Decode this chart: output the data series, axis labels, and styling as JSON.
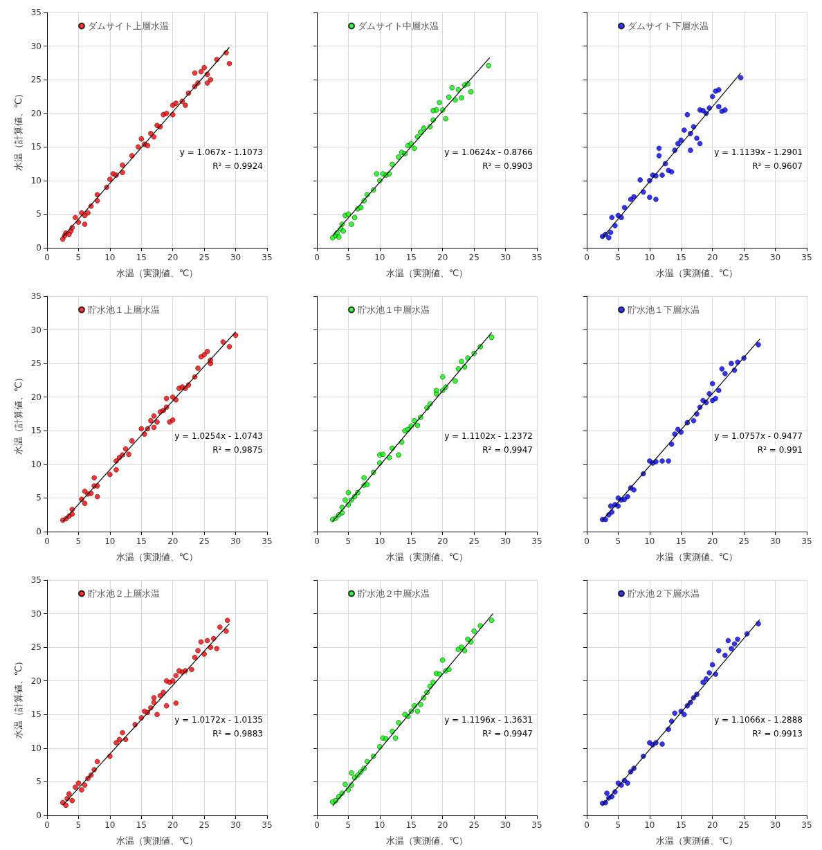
{
  "chart_data": [
    {
      "type": "scatter",
      "ylabel": "水温（計算値、℃）",
      "xlabel": "水温（実測値、℃）",
      "xlim": [
        0,
        35
      ],
      "ylim": [
        0,
        35
      ],
      "xticks": [
        0,
        5,
        10,
        15,
        20,
        25,
        30,
        35
      ],
      "yticks": [
        0,
        5,
        10,
        15,
        20,
        25,
        30,
        35
      ],
      "grid": true,
      "legend": "top left",
      "marker": "circle",
      "annotations": [
        "y = 1.067x - 1.1073",
        "R² = 0.9924"
      ],
      "series": [
        {
          "name": "ダムサイト上層水温",
          "color": "#ff0000",
          "x": [
            2.5,
            2.8,
            3,
            3.5,
            3.8,
            4,
            4.5,
            5,
            5.5,
            6,
            6,
            6.5,
            7,
            8,
            8,
            9.5,
            10,
            10.5,
            11,
            12,
            12,
            13.5,
            14.5,
            15,
            15.5,
            16,
            16.5,
            17,
            17.5,
            18,
            18.5,
            19,
            20,
            20,
            20.5,
            21.5,
            22,
            22.5,
            23.5,
            23.5,
            24,
            24.5,
            25,
            25.5,
            25.5,
            26,
            27,
            28.5,
            29
          ],
          "values": [
            1.3,
            1.8,
            2.2,
            2,
            2.5,
            3,
            4.5,
            3.8,
            5.2,
            3.5,
            4.8,
            5.2,
            6.2,
            7,
            7.9,
            9,
            10.2,
            11,
            10.8,
            12.3,
            11.2,
            13.7,
            15,
            16.2,
            15.4,
            15.2,
            17,
            16.5,
            18.2,
            18,
            19.8,
            20,
            19.8,
            21.2,
            21.5,
            21.8,
            21.2,
            23,
            26,
            24,
            24.5,
            26.2,
            26.8,
            24.5,
            25.8,
            25,
            28,
            29,
            27.4
          ]
        },
        {
          "type": "line",
          "marker": "none",
          "color": "#000000",
          "x": [
            2.5,
            29
          ],
          "values": [
            1.6,
            29.8
          ]
        }
      ]
    },
    {
      "type": "scatter",
      "xlabel": "水温（実測値、℃）",
      "xlim": [
        0,
        35
      ],
      "ylim": [
        0,
        35
      ],
      "xticks": [
        0,
        5,
        10,
        15,
        20,
        25,
        30,
        35
      ],
      "yticks": [
        0,
        5,
        10,
        15,
        20,
        25,
        30,
        35
      ],
      "grid": true,
      "legend": "top left",
      "marker": "circle",
      "tick_labels": "x",
      "annotations": [
        "y = 1.0624x - 0.8766",
        "R² = 0.9903"
      ],
      "series": [
        {
          "name": "ダムサイト中層水温",
          "color": "#00ff00",
          "x": [
            2.5,
            3,
            3.2,
            3.5,
            3.8,
            4,
            4.2,
            4.5,
            5,
            5.5,
            6,
            6.5,
            7,
            7.5,
            8,
            9,
            9.5,
            10,
            10.5,
            11,
            11.5,
            12,
            13,
            13.5,
            14,
            14.5,
            15,
            15.5,
            16,
            16.5,
            17,
            18,
            18.5,
            18.5,
            19,
            19.5,
            20,
            20.5,
            21,
            21.5,
            22,
            22.5,
            23,
            23.5,
            24,
            24.5,
            27.3
          ],
          "values": [
            1.5,
            1.8,
            2.2,
            1.6,
            2.8,
            3.5,
            2.5,
            4.8,
            5,
            3.5,
            4.5,
            5.8,
            6,
            7,
            7.9,
            8.6,
            11,
            10,
            11,
            10.8,
            11,
            12.4,
            13.5,
            14.2,
            14,
            15.2,
            15.5,
            14.8,
            16.5,
            17.2,
            17.8,
            18,
            19,
            20.4,
            20.5,
            21.6,
            20.5,
            19.2,
            22.4,
            23.8,
            22,
            23.5,
            22.3,
            24.2,
            24.4,
            23.2,
            27.1
          ]
        },
        {
          "type": "line",
          "marker": "none",
          "color": "#000000",
          "x": [
            2.5,
            27.5
          ],
          "values": [
            1.8,
            28.3
          ]
        }
      ]
    },
    {
      "type": "scatter",
      "xlabel": "水温（実測値、℃）",
      "xlim": [
        0,
        35
      ],
      "ylim": [
        0,
        35
      ],
      "xticks": [
        0,
        5,
        10,
        15,
        20,
        25,
        30,
        35
      ],
      "yticks": [
        0,
        5,
        10,
        15,
        20,
        25,
        30,
        35
      ],
      "grid": true,
      "legend": "top left",
      "marker": "circle",
      "tick_labels": "x",
      "annotations": [
        "y = 1.1139x - 1.2901",
        "R² = 0.9607"
      ],
      "series": [
        {
          "name": "ダムサイト下層水温",
          "color": "#0000ff",
          "x": [
            2.5,
            3,
            3.5,
            3.8,
            4,
            4.5,
            5,
            5.5,
            6,
            7,
            7.5,
            8.5,
            9,
            10,
            10,
            10.5,
            11,
            11,
            11.5,
            11.5,
            12,
            12.5,
            13,
            13.5,
            14,
            14.5,
            15,
            15.5,
            16,
            16.5,
            16.5,
            17,
            17.5,
            18,
            18,
            18.5,
            19,
            19.5,
            20,
            20.5,
            21,
            21,
            21.5,
            22,
            24.5
          ],
          "values": [
            1.7,
            2,
            1.5,
            2.3,
            4.5,
            3.3,
            4.8,
            4.5,
            6,
            7.2,
            7.6,
            10.1,
            8.3,
            7.5,
            10,
            10.8,
            7.2,
            10.7,
            13.7,
            14.8,
            10.8,
            12.5,
            11.5,
            11.3,
            14.5,
            15.5,
            16,
            17.5,
            19.8,
            14.5,
            17,
            18,
            16.3,
            20.5,
            15.5,
            20.4,
            20,
            20.8,
            22.5,
            23.3,
            23.5,
            21,
            20.3,
            20.5,
            25.3
          ]
        },
        {
          "type": "line",
          "marker": "none",
          "color": "#000000",
          "x": [
            2.5,
            24.5
          ],
          "values": [
            1.5,
            26
          ]
        }
      ]
    },
    {
      "type": "scatter",
      "ylabel": "水温（計算値、℃）",
      "xlabel": "水温（実測値、℃）",
      "xlim": [
        0,
        35
      ],
      "ylim": [
        0,
        35
      ],
      "xticks": [
        0,
        5,
        10,
        15,
        20,
        25,
        30,
        35
      ],
      "yticks": [
        0,
        5,
        10,
        15,
        20,
        25,
        30,
        35
      ],
      "grid": true,
      "legend": "top left",
      "marker": "circle",
      "annotations": [
        "y = 1.0254x - 1.0743",
        "R² = 0.9875"
      ],
      "series": [
        {
          "name": "貯水池１上層水温",
          "color": "#ff0000",
          "x": [
            2.5,
            3,
            3.5,
            4,
            4,
            5.5,
            6,
            6,
            6.5,
            7,
            7.5,
            7.5,
            8,
            8,
            10,
            11,
            11,
            11.5,
            12,
            12.5,
            13,
            13.5,
            15,
            15.5,
            16,
            16.5,
            17,
            17,
            17.5,
            18,
            18.5,
            19,
            19,
            19.5,
            20,
            20,
            20.5,
            21,
            21.5,
            22,
            22.5,
            23.5,
            24,
            24.5,
            25,
            25.5,
            26,
            26,
            28,
            29,
            30
          ],
          "values": [
            1.7,
            1.9,
            2.3,
            3.3,
            2.6,
            4.8,
            4.2,
            6,
            5.6,
            5.7,
            6.8,
            8,
            5.2,
            6.8,
            8.5,
            9.2,
            10.5,
            11,
            11.4,
            12.3,
            11.5,
            13.5,
            15.3,
            14.5,
            15.3,
            16.5,
            17.2,
            15.5,
            16.3,
            17.8,
            18,
            19.8,
            18.5,
            16.3,
            20,
            16.6,
            19.6,
            21.3,
            21.5,
            21.3,
            21.8,
            23,
            24.3,
            26,
            26.3,
            26.8,
            25,
            25.5,
            28.2,
            27.5,
            29.2
          ]
        },
        {
          "type": "line",
          "marker": "none",
          "color": "#000000",
          "x": [
            2.5,
            30
          ],
          "values": [
            1.5,
            29.7
          ]
        }
      ]
    },
    {
      "type": "scatter",
      "xlabel": "水温（実測値、℃）",
      "xlim": [
        0,
        35
      ],
      "ylim": [
        0,
        35
      ],
      "xticks": [
        0,
        5,
        10,
        15,
        20,
        25,
        30,
        35
      ],
      "yticks": [
        0,
        5,
        10,
        15,
        20,
        25,
        30,
        35
      ],
      "grid": true,
      "legend": "top left",
      "marker": "circle",
      "tick_labels": "x",
      "annotations": [
        "y = 1.1102x - 1.2372",
        "R² = 0.9947"
      ],
      "series": [
        {
          "name": "貯水池１中層水温",
          "color": "#00ff00",
          "x": [
            2.5,
            3,
            3.5,
            4,
            4,
            4.5,
            5,
            5,
            5.5,
            6,
            6.5,
            7.5,
            7.5,
            8,
            9,
            10,
            10,
            10.5,
            11.5,
            12,
            13,
            13.5,
            14,
            14.5,
            15,
            15.5,
            16,
            16.5,
            17.5,
            18,
            19,
            19,
            20,
            20,
            20.5,
            22,
            22.5,
            23,
            23.5,
            24,
            25,
            26,
            27.8
          ],
          "values": [
            1.8,
            2,
            2.5,
            3.6,
            2.8,
            4.7,
            5.8,
            4,
            4.7,
            5.2,
            5.8,
            6.9,
            8,
            7,
            8.8,
            10.2,
            11.4,
            11.5,
            11,
            12.4,
            11.4,
            13.3,
            15,
            15.2,
            15.7,
            16.5,
            15.8,
            17,
            18.4,
            19,
            20.5,
            21,
            21,
            23,
            21.5,
            22.4,
            24.2,
            25.3,
            24.5,
            25.8,
            26.5,
            27.5,
            28.9
          ]
        },
        {
          "type": "line",
          "marker": "none",
          "color": "#000000",
          "x": [
            2.5,
            27.8
          ],
          "values": [
            1.5,
            29.6
          ]
        }
      ]
    },
    {
      "type": "scatter",
      "xlabel": "水温（実測値、℃）",
      "xlim": [
        0,
        35
      ],
      "ylim": [
        0,
        35
      ],
      "xticks": [
        0,
        5,
        10,
        15,
        20,
        25,
        30,
        35
      ],
      "yticks": [
        0,
        5,
        10,
        15,
        20,
        25,
        30,
        35
      ],
      "grid": true,
      "legend": "top left",
      "marker": "circle",
      "tick_labels": "x",
      "annotations": [
        "y = 1.0757x - 0.9477",
        "R² = 0.991"
      ],
      "series": [
        {
          "name": "貯水池１下層水温",
          "color": "#0000ff",
          "x": [
            2.5,
            3,
            3.5,
            3.8,
            4,
            4.5,
            5,
            5,
            5.5,
            6,
            6.5,
            7,
            7.5,
            9,
            10,
            10.5,
            11,
            12,
            13,
            13.5,
            14,
            14.5,
            15,
            16,
            17,
            17.5,
            18,
            18.5,
            19,
            19.5,
            20,
            20,
            20.5,
            21,
            21.5,
            22,
            23,
            23.5,
            24,
            25,
            27.3
          ],
          "values": [
            1.8,
            1.8,
            2.5,
            3.8,
            2.9,
            4,
            5,
            3.8,
            4.7,
            4.8,
            5.2,
            6.5,
            6.2,
            8.6,
            10.5,
            10.2,
            10.4,
            10.5,
            10.5,
            13,
            14.5,
            15.2,
            14.8,
            16.2,
            16.5,
            17.5,
            18.5,
            19.5,
            19.2,
            20.5,
            22,
            19.5,
            19.8,
            21,
            24.2,
            23.5,
            25,
            24,
            25.2,
            25.8,
            27.8
          ]
        },
        {
          "type": "line",
          "marker": "none",
          "color": "#000000",
          "x": [
            2.5,
            27.5
          ],
          "values": [
            1.7,
            28.6
          ]
        }
      ]
    },
    {
      "type": "scatter",
      "ylabel": "水温（計算値、℃）",
      "xlabel": "水温（実測値、℃）",
      "xlim": [
        0,
        35
      ],
      "ylim": [
        0,
        35
      ],
      "xticks": [
        0,
        5,
        10,
        15,
        20,
        25,
        30,
        35
      ],
      "yticks": [
        0,
        5,
        10,
        15,
        20,
        25,
        30,
        35
      ],
      "grid": true,
      "legend": "top left",
      "marker": "circle",
      "annotations": [
        "y = 1.0172x - 1.0135",
        "R² = 0.9883"
      ],
      "series": [
        {
          "name": "貯水池２上層水温",
          "color": "#ff0000",
          "x": [
            2.5,
            3,
            3.2,
            3.5,
            4,
            4.5,
            5,
            5.5,
            6,
            6.5,
            7,
            7.5,
            8,
            10,
            11,
            11.5,
            12,
            12.5,
            14,
            15,
            15.5,
            16,
            16.5,
            17,
            17,
            17.5,
            18,
            18.5,
            19,
            19,
            19.5,
            20,
            20.5,
            20.5,
            21,
            21.5,
            22,
            23,
            23.5,
            24,
            24.5,
            25,
            25.5,
            26,
            26.5,
            27,
            27.5,
            28.5,
            28.7
          ],
          "values": [
            1.9,
            1.5,
            2.5,
            3.2,
            2.2,
            4.2,
            4.8,
            3.8,
            4.5,
            5.5,
            6,
            6.8,
            8,
            8.8,
            10.8,
            11.3,
            12.3,
            11.3,
            13.5,
            14.5,
            15.5,
            15.3,
            16,
            16.8,
            17.5,
            15,
            17.8,
            18.3,
            20,
            16.3,
            19.8,
            20,
            20.8,
            16.7,
            21.5,
            21.3,
            21.5,
            21.7,
            23.5,
            24.5,
            25.8,
            24,
            26,
            25,
            26.3,
            24.8,
            28,
            27.4,
            29
          ]
        },
        {
          "type": "line",
          "marker": "none",
          "color": "#000000",
          "x": [
            2.5,
            29
          ],
          "values": [
            1.5,
            28.5
          ]
        }
      ]
    },
    {
      "type": "scatter",
      "xlabel": "水温（実測値、℃）",
      "xlim": [
        0,
        35
      ],
      "ylim": [
        0,
        35
      ],
      "xticks": [
        0,
        5,
        10,
        15,
        20,
        25,
        30,
        35
      ],
      "yticks": [
        0,
        5,
        10,
        15,
        20,
        25,
        30,
        35
      ],
      "grid": true,
      "legend": "top left",
      "marker": "circle",
      "tick_labels": "x",
      "annotations": [
        "y = 1.1196x - 1.3631",
        "R² = 0.9947"
      ],
      "series": [
        {
          "name": "貯水池２中層水温",
          "color": "#00ff00",
          "x": [
            2.5,
            3,
            3.5,
            4,
            4.5,
            5,
            5.5,
            5.5,
            6,
            6.5,
            7,
            7.5,
            8,
            9,
            10,
            10.5,
            11,
            12,
            12.5,
            13,
            14,
            14.5,
            15,
            15.5,
            16,
            16.5,
            17,
            17.5,
            18,
            18.5,
            19,
            19.5,
            20,
            20.5,
            21,
            22.5,
            23,
            23.5,
            24,
            24.5,
            25,
            26,
            27.8
          ],
          "values": [
            2,
            2.2,
            2.8,
            3.3,
            4.6,
            3.8,
            6.3,
            4.5,
            5.6,
            6,
            6.5,
            7,
            8,
            8.8,
            10.2,
            11.5,
            11.4,
            12.5,
            11.5,
            13.8,
            15,
            14.7,
            15.5,
            16.3,
            15.5,
            16.5,
            17.5,
            18.3,
            19.2,
            19.8,
            21.1,
            21,
            23.1,
            21.5,
            21.7,
            24.7,
            25,
            24.5,
            26.2,
            25.8,
            27.4,
            28.2,
            29
          ]
        },
        {
          "type": "line",
          "marker": "none",
          "color": "#000000",
          "x": [
            2.5,
            28
          ],
          "values": [
            1.4,
            30
          ]
        }
      ]
    },
    {
      "type": "scatter",
      "xlabel": "水温（実測値、℃）",
      "xlim": [
        0,
        35
      ],
      "ylim": [
        0,
        35
      ],
      "xticks": [
        0,
        5,
        10,
        15,
        20,
        25,
        30,
        35
      ],
      "yticks": [
        0,
        5,
        10,
        15,
        20,
        25,
        30,
        35
      ],
      "grid": true,
      "legend": "top left",
      "marker": "circle",
      "tick_labels": "x",
      "annotations": [
        "y = 1.1066x - 1.2888",
        "R² = 0.9913"
      ],
      "series": [
        {
          "name": "貯水池２下層水温",
          "color": "#0000ff",
          "x": [
            2.5,
            3,
            3.2,
            3.5,
            4,
            4.5,
            5,
            5.5,
            6,
            6.5,
            7,
            7.5,
            9,
            10,
            10.5,
            11,
            12,
            13,
            13.5,
            14,
            15,
            15.5,
            16,
            16.5,
            17,
            17.5,
            18.5,
            19,
            19.5,
            20,
            20.5,
            21,
            22,
            22.5,
            23,
            23.5,
            24,
            25.5,
            27.3
          ],
          "values": [
            1.8,
            1.9,
            3.3,
            2.6,
            2.8,
            3.5,
            4.8,
            4.5,
            5.2,
            4.8,
            6.5,
            7,
            8.8,
            10.8,
            10.5,
            10.8,
            10.6,
            12.8,
            14,
            15.2,
            15.5,
            15,
            16.3,
            16.8,
            17.5,
            18,
            19.8,
            20.3,
            21.2,
            22.4,
            21,
            24.5,
            23.8,
            26,
            24.8,
            25.5,
            26.2,
            27,
            28.5
          ]
        },
        {
          "type": "line",
          "marker": "none",
          "color": "#000000",
          "x": [
            2.5,
            27.5
          ],
          "values": [
            1.5,
            29.1
          ]
        }
      ]
    }
  ]
}
